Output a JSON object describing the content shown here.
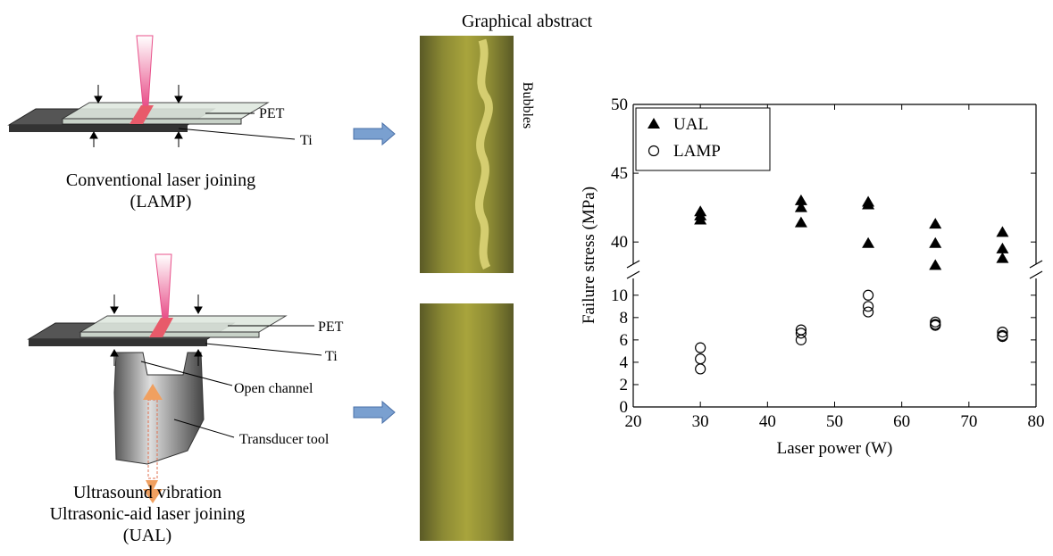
{
  "header": {
    "title": "Graphical abstract"
  },
  "diagram_top": {
    "labels": [
      "PET",
      "Ti"
    ],
    "caption": [
      "Conventional laser joining",
      "(LAMP)"
    ]
  },
  "diagram_bottom": {
    "labels": [
      "PET",
      "Ti",
      "Open channel",
      "Transducer tool",
      "Ultrasound vibration"
    ],
    "caption": [
      "Ultrasonic-aid laser joining",
      "(UAL)"
    ]
  },
  "photo_top": {
    "annotation": "Bubbles"
  },
  "chart_data": {
    "type": "scatter",
    "xlabel": "Laser power (W)",
    "ylabel": "Failure stress (MPa)",
    "xlim": [
      20,
      80
    ],
    "xticks": [
      20,
      30,
      40,
      50,
      60,
      70,
      80
    ],
    "y_segments": [
      {
        "ylim": [
          0,
          11.5
        ],
        "yticks": [
          0,
          2,
          4,
          6,
          8,
          10
        ]
      },
      {
        "ylim": [
          38,
          50
        ],
        "yticks": [
          40,
          45,
          50
        ]
      }
    ],
    "legend": "upper left",
    "series": [
      {
        "name": "UAL",
        "marker": "triangle",
        "color": "#000000",
        "x": [
          30,
          30,
          30,
          45,
          45,
          45,
          55,
          55,
          55,
          65,
          65,
          65,
          75,
          75,
          75
        ],
        "values": [
          42.2,
          41.9,
          41.6,
          43.0,
          42.5,
          41.4,
          42.9,
          42.7,
          39.9,
          41.3,
          39.9,
          38.3,
          40.7,
          39.5,
          38.8
        ]
      },
      {
        "name": "LAMP",
        "marker": "circle",
        "color": "#000000",
        "x": [
          30,
          30,
          30,
          45,
          45,
          45,
          55,
          55,
          55,
          65,
          65,
          65,
          75,
          75,
          75
        ],
        "values": [
          5.3,
          4.3,
          3.4,
          6.9,
          6.6,
          6.0,
          10.0,
          9.0,
          8.5,
          7.6,
          7.4,
          7.3,
          6.7,
          6.4,
          6.3
        ]
      }
    ]
  }
}
